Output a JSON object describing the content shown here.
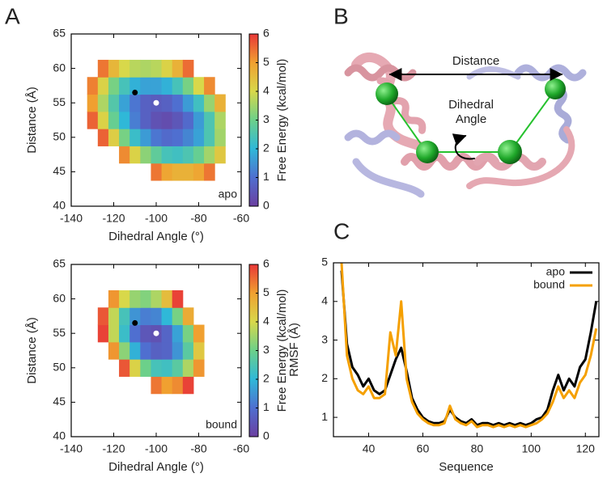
{
  "panel_labels": [
    "A",
    "B",
    "C"
  ],
  "diagram": {
    "distance_label": "Distance",
    "dihedral_label": [
      "Dihedral",
      "Angle"
    ]
  },
  "chart_data": [
    {
      "type": "heatmap",
      "xlabel": "Dihedral Angle (°)",
      "ylabel": "Distance (Å)",
      "annotation": "apo",
      "xlim": [
        -140,
        -60
      ],
      "xticks": [
        -140,
        -120,
        -100,
        -80,
        -60
      ],
      "ylim": [
        40,
        65
      ],
      "yticks": [
        40,
        45,
        50,
        55,
        60,
        65
      ],
      "x": [
        -130,
        -125,
        -120,
        -115,
        -110,
        -105,
        -100,
        -95,
        -90,
        -85,
        -80,
        -75,
        -70
      ],
      "y": [
        45,
        47.5,
        50,
        52.5,
        55,
        57.5,
        60
      ],
      "z": [
        [
          null,
          null,
          null,
          null,
          null,
          null,
          5.4,
          4.9,
          4.7,
          4.7,
          4.9,
          5.4,
          null
        ],
        [
          null,
          null,
          null,
          5.2,
          4.1,
          3.3,
          2.8,
          2.4,
          2.3,
          2.5,
          2.9,
          3.5,
          4.3
        ],
        [
          null,
          5.6,
          4.2,
          3.1,
          2.2,
          1.6,
          1.1,
          0.9,
          1.0,
          1.3,
          1.7,
          2.5,
          3.5
        ],
        [
          5.6,
          4.1,
          2.9,
          2.0,
          1.2,
          0.7,
          0.4,
          0.3,
          0.5,
          0.9,
          1.6,
          2.5,
          3.6
        ],
        [
          5.0,
          3.6,
          2.6,
          1.7,
          1.1,
          0.7,
          0.6,
          0.7,
          1.0,
          1.6,
          2.3,
          3.4,
          4.7
        ],
        [
          5.3,
          4.1,
          3.1,
          2.4,
          1.9,
          1.7,
          1.7,
          1.9,
          2.4,
          3.1,
          4.0,
          5.2,
          null
        ],
        [
          null,
          5.4,
          4.6,
          4.0,
          3.7,
          3.6,
          3.7,
          4.1,
          4.7,
          5.5,
          null,
          null,
          null
        ]
      ],
      "zlim": [
        0,
        6
      ],
      "zticks": [
        0,
        1,
        2,
        3,
        4,
        5,
        6
      ],
      "colorbar_label": "Free Energy (kcal/mol)",
      "colorscale": [
        "#6b3fa0",
        "#4f6fd0",
        "#2fb8d8",
        "#6cd08a",
        "#d8d84a",
        "#f0a030",
        "#e83838"
      ],
      "points": [
        {
          "x": -110,
          "y": 56.5,
          "color": "#000000"
        },
        {
          "x": -100,
          "y": 55,
          "color": "#ffffff"
        }
      ]
    },
    {
      "type": "heatmap",
      "xlabel": "Dihedral Angle (°)",
      "ylabel": "Distance (Å)",
      "annotation": "bound",
      "xlim": [
        -140,
        -60
      ],
      "xticks": [
        -140,
        -120,
        -100,
        -80,
        -60
      ],
      "ylim": [
        40,
        65
      ],
      "yticks": [
        40,
        45,
        50,
        55,
        60,
        65
      ],
      "x": [
        -130,
        -125,
        -120,
        -115,
        -110,
        -105,
        -100,
        -95,
        -90,
        -85,
        -80,
        -75,
        -70
      ],
      "y": [
        45,
        47.5,
        50,
        52.5,
        55,
        57.5,
        60
      ],
      "z": [
        [
          null,
          null,
          null,
          null,
          null,
          null,
          null,
          null,
          null,
          null,
          null,
          null,
          null
        ],
        [
          null,
          null,
          null,
          null,
          null,
          null,
          5.4,
          5.0,
          5.2,
          5.9,
          null,
          null,
          null
        ],
        [
          null,
          null,
          null,
          5.7,
          4.1,
          3.0,
          2.4,
          2.3,
          2.7,
          3.6,
          5.1,
          null,
          null
        ],
        [
          null,
          null,
          5.1,
          3.3,
          1.9,
          1.0,
          0.7,
          0.8,
          1.5,
          2.7,
          4.3,
          null,
          null
        ],
        [
          null,
          5.9,
          3.8,
          2.2,
          1.0,
          0.5,
          0.4,
          0.8,
          1.7,
          3.1,
          5.0,
          null,
          null
        ],
        [
          null,
          5.7,
          3.8,
          2.4,
          1.5,
          1.2,
          1.3,
          2.0,
          3.1,
          4.8,
          null,
          null,
          null
        ],
        [
          null,
          null,
          5.1,
          4.0,
          3.4,
          3.2,
          3.6,
          4.5,
          5.9,
          null,
          null,
          null,
          null
        ]
      ],
      "zlim": [
        0,
        6
      ],
      "zticks": [
        0,
        1,
        2,
        3,
        4,
        5,
        6
      ],
      "colorbar_label": "Free Energy (kcal/mol)",
      "colorscale": [
        "#6b3fa0",
        "#4f6fd0",
        "#2fb8d8",
        "#6cd08a",
        "#d8d84a",
        "#f0a030",
        "#e83838"
      ],
      "points": [
        {
          "x": -110,
          "y": 56.5,
          "color": "#000000"
        },
        {
          "x": -100,
          "y": 55,
          "color": "#ffffff"
        }
      ]
    },
    {
      "type": "line",
      "xlabel": "Sequence",
      "ylabel": "RMSF (Å)",
      "legend": "upper right",
      "xlim": [
        27,
        125
      ],
      "xticks": [
        40,
        60,
        80,
        100,
        120
      ],
      "ylim": [
        0.5,
        5
      ],
      "yticks": [
        1,
        2,
        3,
        4,
        5
      ],
      "x": [
        30,
        32,
        34,
        36,
        38,
        40,
        42,
        44,
        46,
        48,
        50,
        52,
        54,
        56,
        58,
        60,
        62,
        64,
        66,
        68,
        70,
        72,
        74,
        76,
        78,
        80,
        82,
        84,
        86,
        88,
        90,
        92,
        94,
        96,
        98,
        100,
        102,
        104,
        106,
        108,
        110,
        112,
        114,
        116,
        118,
        120,
        122,
        124
      ],
      "series": [
        {
          "name": "apo",
          "color": "#000000",
          "values": [
            4.8,
            2.9,
            2.3,
            2.1,
            1.8,
            2.0,
            1.7,
            1.6,
            1.7,
            2.1,
            2.5,
            2.8,
            2.2,
            1.5,
            1.2,
            1.0,
            0.9,
            0.85,
            0.85,
            0.9,
            1.2,
            1.0,
            0.9,
            0.85,
            0.95,
            0.8,
            0.85,
            0.85,
            0.8,
            0.85,
            0.8,
            0.85,
            0.8,
            0.85,
            0.8,
            0.85,
            0.95,
            1.0,
            1.2,
            1.7,
            2.1,
            1.7,
            2.0,
            1.8,
            2.3,
            2.5,
            3.2,
            4.0
          ]
        },
        {
          "name": "bound",
          "color": "#f5a000",
          "values": [
            5.0,
            2.6,
            2.0,
            1.7,
            1.6,
            1.8,
            1.5,
            1.5,
            1.6,
            3.2,
            2.6,
            4.0,
            2.0,
            1.4,
            1.1,
            0.95,
            0.85,
            0.8,
            0.8,
            0.85,
            1.3,
            0.95,
            0.85,
            0.8,
            0.9,
            0.75,
            0.8,
            0.8,
            0.75,
            0.8,
            0.75,
            0.8,
            0.75,
            0.8,
            0.75,
            0.8,
            0.85,
            0.95,
            1.1,
            1.4,
            1.8,
            1.5,
            1.7,
            1.5,
            1.9,
            2.1,
            2.6,
            3.3
          ]
        }
      ]
    }
  ]
}
